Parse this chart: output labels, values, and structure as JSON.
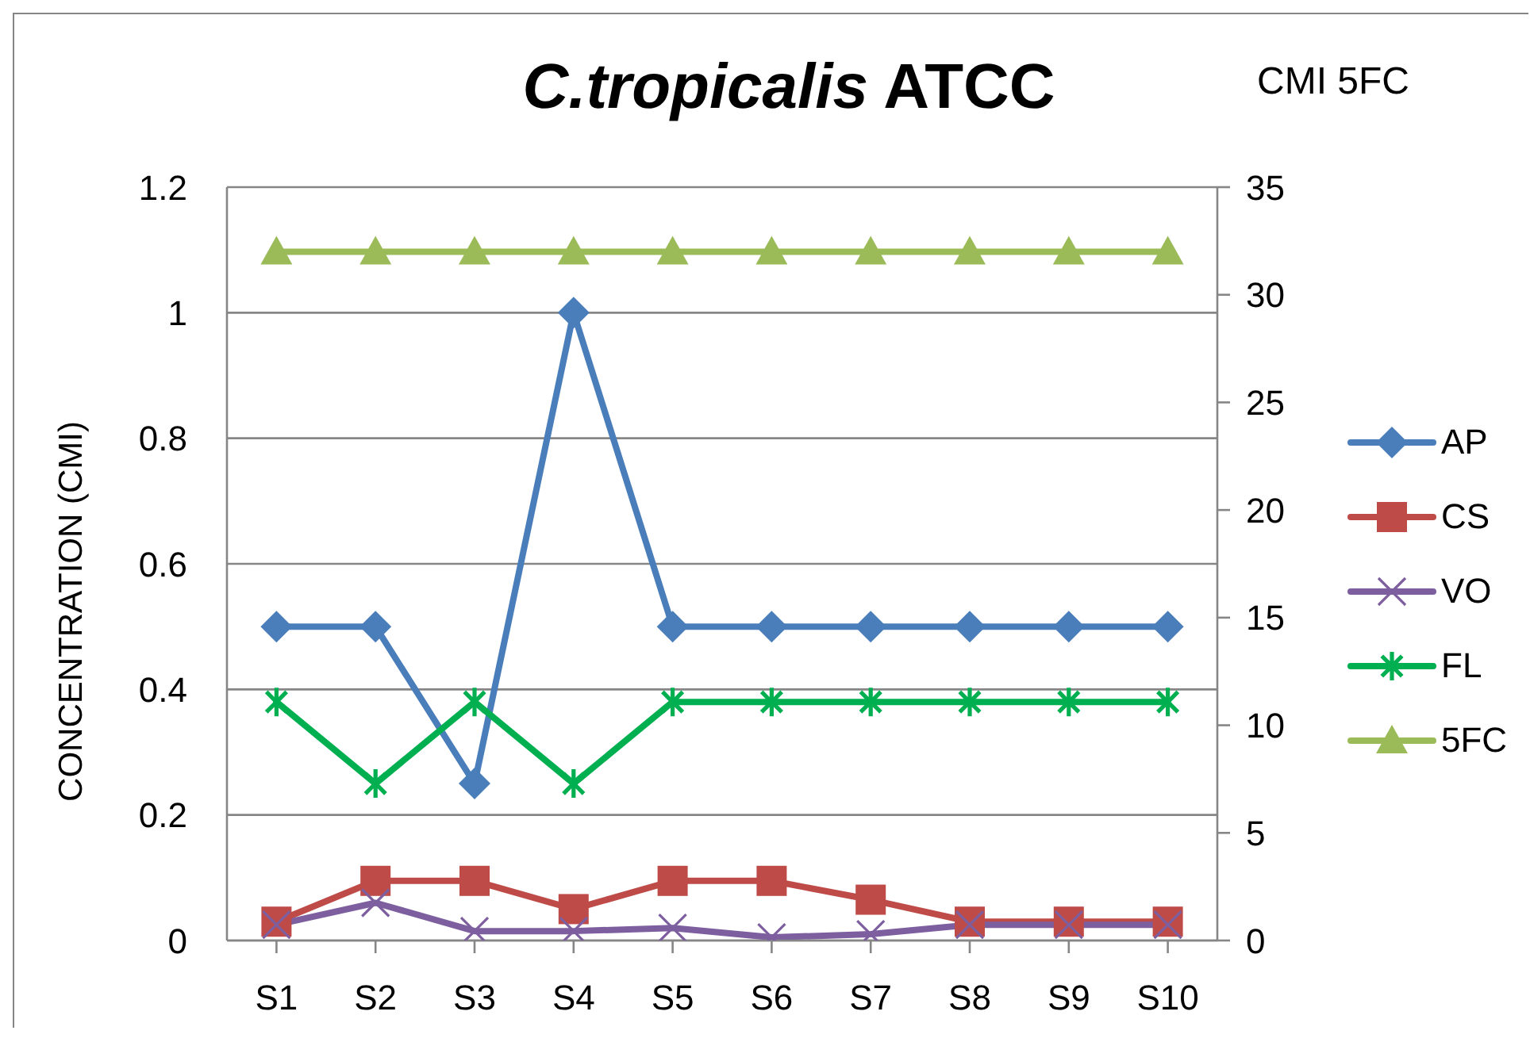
{
  "chart_data": {
    "type": "line",
    "title": "C.tropicalis ATCC",
    "ylabel": "CONCENTRATION (CMI)",
    "y2label": "CMI 5FC",
    "categories": [
      "S1",
      "S2",
      "S3",
      "S4",
      "S5",
      "S6",
      "S7",
      "S8",
      "S9",
      "S10"
    ],
    "series": [
      {
        "name": "AP",
        "color": "#4a7ebb",
        "marker": "diamond",
        "values": [
          0.5,
          0.5,
          0.25,
          1,
          0.5,
          0.5,
          0.5,
          0.5,
          0.5,
          0.5
        ]
      },
      {
        "name": "CS",
        "color": "#be4b48",
        "marker": "square",
        "values": [
          0.03,
          0.095,
          0.095,
          0.05,
          0.095,
          0.095,
          0.065,
          0.03,
          0.03,
          0.03
        ]
      },
      {
        "name": "VO",
        "color": "#7d5fa0",
        "marker": "cross",
        "values": [
          0.025,
          0.06,
          0.015,
          0.015,
          0.02,
          0.005,
          0.01,
          0.025,
          0.025,
          0.025
        ]
      },
      {
        "name": "FL",
        "color": "#00b050",
        "marker": "star",
        "values": [
          0.38,
          0.25,
          0.38,
          0.25,
          0.38,
          0.38,
          0.38,
          0.38,
          0.38,
          0.38
        ]
      },
      {
        "name": "5FC",
        "color": "#9bbb59",
        "marker": "triangle",
        "axis": "y2",
        "values": [
          32,
          32,
          32,
          32,
          32,
          32,
          32,
          32,
          32,
          32
        ]
      }
    ],
    "ylim": [
      0,
      1.2
    ],
    "yticks": [
      0,
      0.2,
      0.4,
      0.6,
      0.8,
      1,
      1.2
    ],
    "y2lim": [
      0,
      35
    ],
    "y2ticks": [
      0,
      5,
      10,
      15,
      20,
      25,
      30,
      35
    ],
    "grid": "y",
    "legend": "right",
    "line_style": "solid"
  }
}
